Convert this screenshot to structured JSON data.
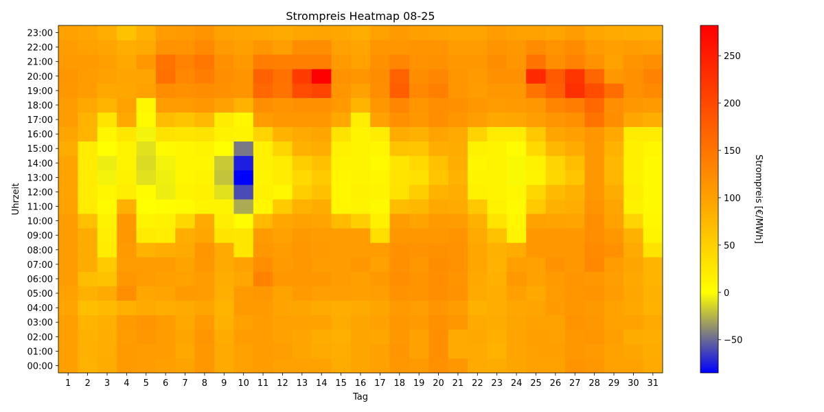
{
  "chart_data": {
    "type": "heatmap",
    "title": "Strompreis Heatmap 08-25",
    "xlabel": "Tag",
    "ylabel": "Uhrzeit",
    "colorbar_label": "Strompreis [€/MWh]",
    "x": [
      1,
      2,
      3,
      4,
      5,
      6,
      7,
      8,
      9,
      10,
      11,
      12,
      13,
      14,
      15,
      16,
      17,
      18,
      19,
      20,
      21,
      22,
      23,
      24,
      25,
      26,
      27,
      28,
      29,
      30,
      31
    ],
    "y": [
      "00:00",
      "01:00",
      "02:00",
      "03:00",
      "04:00",
      "05:00",
      "06:00",
      "07:00",
      "08:00",
      "09:00",
      "10:00",
      "11:00",
      "12:00",
      "13:00",
      "14:00",
      "15:00",
      "16:00",
      "17:00",
      "18:00",
      "19:00",
      "20:00",
      "21:00",
      "22:00",
      "23:00"
    ],
    "clim": [
      -85,
      282
    ],
    "colorbar_ticks": [
      -50,
      0,
      50,
      100,
      150,
      200,
      250
    ],
    "colormap": [
      {
        "value": -85,
        "color": "#0000ff"
      },
      {
        "value": 0,
        "color": "#ffff00"
      },
      {
        "value": 95,
        "color": "#ffa500"
      },
      {
        "value": 282,
        "color": "#ff0000"
      }
    ],
    "values": [
      [
        102,
        80,
        88,
        108,
        104,
        102,
        97,
        110,
        90,
        100,
        104,
        100,
        100,
        98,
        88,
        95,
        100,
        110,
        107,
        118,
        110,
        90,
        88,
        95,
        100,
        98,
        114,
        110,
        99,
        98,
        90
      ],
      [
        102,
        83,
        87,
        108,
        104,
        105,
        92,
        110,
        90,
        100,
        104,
        103,
        95,
        90,
        85,
        95,
        100,
        113,
        100,
        120,
        90,
        90,
        80,
        96,
        100,
        102,
        110,
        108,
        98,
        95,
        88
      ],
      [
        102,
        82,
        86,
        104,
        110,
        105,
        95,
        112,
        89,
        104,
        104,
        99,
        96,
        88,
        83,
        95,
        94,
        110,
        100,
        120,
        90,
        92,
        84,
        96,
        102,
        100,
        110,
        112,
        102,
        88,
        85
      ],
      [
        102,
        78,
        84,
        106,
        113,
        105,
        92,
        108,
        82,
        100,
        104,
        100,
        100,
        98,
        88,
        95,
        100,
        110,
        107,
        118,
        110,
        90,
        88,
        95,
        100,
        98,
        114,
        110,
        99,
        98,
        90
      ],
      [
        96,
        68,
        72,
        83,
        90,
        85,
        90,
        95,
        79,
        108,
        106,
        97,
        95,
        90,
        86,
        90,
        95,
        107,
        103,
        113,
        105,
        82,
        85,
        94,
        96,
        108,
        112,
        109,
        98,
        92,
        80
      ],
      [
        99,
        82,
        90,
        120,
        94,
        96,
        106,
        104,
        84,
        107,
        110,
        97,
        106,
        103,
        103,
        101,
        103,
        117,
        114,
        120,
        117,
        90,
        87,
        101,
        91,
        104,
        112,
        114,
        104,
        94,
        82
      ],
      [
        104,
        70,
        64,
        110,
        105,
        101,
        98,
        104,
        86,
        93,
        134,
        110,
        111,
        111,
        105,
        102,
        109,
        120,
        115,
        120,
        114,
        92,
        83,
        109,
        100,
        108,
        113,
        110,
        103,
        92,
        78
      ],
      [
        104,
        88,
        56,
        105,
        104,
        105,
        97,
        110,
        90,
        100,
        120,
        106,
        110,
        104,
        104,
        110,
        100,
        118,
        110,
        122,
        117,
        93,
        80,
        101,
        100,
        116,
        110,
        128,
        104,
        95,
        78
      ],
      [
        104,
        88,
        20,
        108,
        80,
        85,
        90,
        112,
        90,
        25,
        110,
        104,
        111,
        106,
        104,
        104,
        104,
        118,
        116,
        118,
        116,
        93,
        82,
        88,
        111,
        110,
        110,
        126,
        118,
        90,
        30
      ],
      [
        104,
        88,
        18,
        110,
        20,
        18,
        86,
        94,
        28,
        25,
        108,
        100,
        109,
        104,
        104,
        104,
        34,
        110,
        110,
        110,
        114,
        90,
        64,
        12,
        110,
        110,
        110,
        120,
        110,
        82,
        12
      ],
      [
        104,
        66,
        14,
        110,
        12,
        15,
        42,
        90,
        18,
        2,
        74,
        94,
        98,
        96,
        72,
        52,
        16,
        104,
        97,
        106,
        104,
        82,
        28,
        10,
        98,
        97,
        96,
        120,
        98,
        45,
        8
      ],
      [
        98,
        20,
        5,
        83,
        0,
        2,
        5,
        12,
        12,
        -28,
        9,
        55,
        80,
        88,
        10,
        12,
        6,
        70,
        75,
        92,
        90,
        58,
        14,
        5,
        55,
        82,
        86,
        114,
        95,
        14,
        6
      ],
      [
        97,
        20,
        10,
        18,
        2,
        -6,
        12,
        15,
        -10,
        -60,
        15,
        8,
        52,
        66,
        10,
        14,
        12,
        30,
        52,
        80,
        85,
        14,
        12,
        8,
        42,
        72,
        82,
        110,
        88,
        18,
        6
      ],
      [
        97,
        20,
        -4,
        14,
        -10,
        -5,
        8,
        12,
        -20,
        -85,
        12,
        20,
        40,
        55,
        10,
        12,
        10,
        28,
        32,
        60,
        80,
        12,
        12,
        -2,
        12,
        42,
        60,
        110,
        77,
        14,
        6
      ],
      [
        97,
        20,
        -6,
        12,
        -12,
        -4,
        10,
        10,
        -18,
        -75,
        15,
        20,
        52,
        66,
        12,
        12,
        5,
        26,
        40,
        65,
        85,
        10,
        12,
        -2,
        14,
        45,
        68,
        110,
        76,
        16,
        6
      ],
      [
        88,
        20,
        0,
        12,
        -10,
        5,
        10,
        12,
        0,
        -45,
        15,
        44,
        82,
        86,
        15,
        12,
        10,
        62,
        60,
        85,
        88,
        14,
        12,
        4,
        40,
        75,
        89,
        110,
        80,
        16,
        8
      ],
      [
        95,
        78,
        9,
        25,
        -4,
        30,
        26,
        30,
        14,
        12,
        45,
        80,
        90,
        95,
        30,
        12,
        20,
        88,
        82,
        97,
        90,
        46,
        20,
        20,
        58,
        95,
        102,
        112,
        92,
        20,
        20
      ],
      [
        104,
        80,
        28,
        92,
        5,
        70,
        62,
        74,
        20,
        8,
        104,
        110,
        110,
        110,
        92,
        18,
        100,
        118,
        110,
        120,
        112,
        103,
        92,
        94,
        103,
        113,
        118,
        150,
        122,
        93,
        86
      ],
      [
        104,
        92,
        78,
        98,
        8,
        104,
        104,
        110,
        100,
        80,
        120,
        114,
        118,
        118,
        108,
        78,
        110,
        130,
        112,
        120,
        118,
        110,
        104,
        106,
        110,
        132,
        140,
        165,
        120,
        110,
        108
      ],
      [
        110,
        104,
        92,
        94,
        98,
        122,
        118,
        122,
        118,
        114,
        164,
        150,
        196,
        205,
        112,
        100,
        120,
        176,
        128,
        138,
        112,
        104,
        110,
        110,
        150,
        174,
        228,
        195,
        158,
        118,
        126
      ],
      [
        112,
        104,
        100,
        96,
        96,
        154,
        128,
        140,
        120,
        114,
        172,
        154,
        215,
        282,
        117,
        112,
        122,
        170,
        122,
        130,
        112,
        106,
        118,
        118,
        236,
        180,
        222,
        168,
        110,
        118,
        134
      ],
      [
        108,
        106,
        102,
        92,
        110,
        152,
        133,
        148,
        118,
        109,
        140,
        138,
        138,
        138,
        108,
        98,
        118,
        130,
        116,
        118,
        110,
        110,
        122,
        112,
        150,
        120,
        134,
        116,
        98,
        114,
        120
      ],
      [
        104,
        99,
        96,
        86,
        90,
        116,
        114,
        126,
        106,
        102,
        112,
        103,
        122,
        122,
        100,
        96,
        112,
        112,
        114,
        114,
        105,
        104,
        114,
        110,
        124,
        114,
        124,
        108,
        102,
        104,
        102
      ],
      [
        100,
        96,
        86,
        64,
        83,
        104,
        106,
        114,
        100,
        96,
        93,
        90,
        94,
        96,
        94,
        86,
        98,
        106,
        102,
        100,
        96,
        96,
        104,
        98,
        98,
        96,
        104,
        93,
        90,
        88,
        86
      ]
    ]
  }
}
